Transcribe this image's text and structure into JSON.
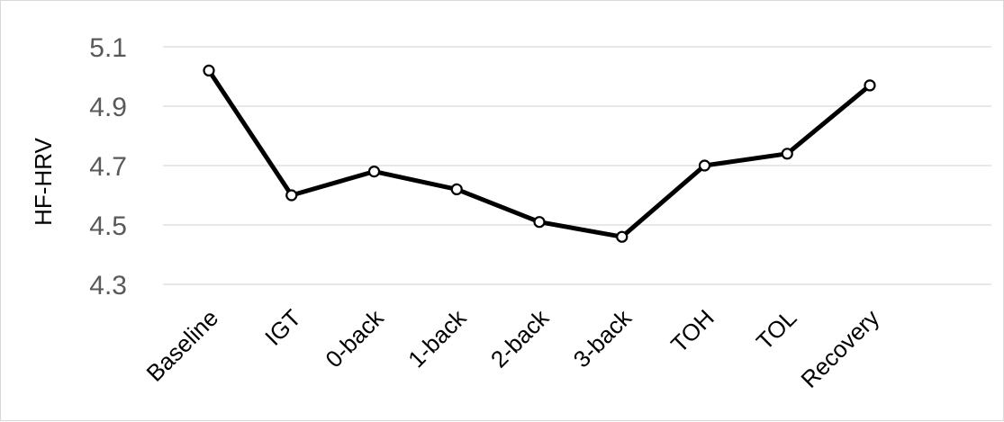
{
  "chart_data": {
    "type": "line",
    "title": "",
    "xlabel": "",
    "ylabel": "HF-HRV",
    "categories": [
      "Baseline",
      "IGT",
      "0-back",
      "1-back",
      "2-back",
      "3-back",
      "TOH",
      "TOL",
      "Recovery"
    ],
    "series": [
      {
        "values": [
          5.02,
          4.6,
          4.68,
          4.62,
          4.51,
          4.46,
          4.7,
          4.74,
          4.97
        ]
      }
    ],
    "yticks": [
      "4.3",
      "4.5",
      "4.7",
      "4.9",
      "5.1"
    ],
    "ylim": [
      4.3,
      5.1
    ],
    "grid": true,
    "legend": "none",
    "colors": {
      "line": "#000000",
      "marker_fill": "#ffffff",
      "grid": "#d9d9d9",
      "tick_text": "#595959"
    }
  }
}
